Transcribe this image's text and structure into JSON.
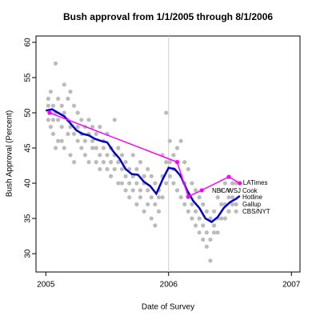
{
  "chart_data": {
    "type": "scatter",
    "title": "Bush approval from 1/1/2005 through 8/1/2006",
    "xlabel": "Date of Survey",
    "ylabel": "Bush Approval (Percent)",
    "xlim": [
      2004.92,
      2007.07
    ],
    "ylim": [
      27.4,
      60.9
    ],
    "xticks": [
      2005,
      2006,
      2007
    ],
    "yticks": [
      30,
      35,
      40,
      45,
      50,
      55,
      60
    ],
    "vline": 2006,
    "series": [
      {
        "type": "scatter",
        "color": "#bbbbbb",
        "x": [
          2005.02,
          2005.02,
          2005.02,
          2005.04,
          2005.04,
          2005.04,
          2005.06,
          2005.06,
          2005.06,
          2005.08,
          2005.08,
          2005.08,
          2005.1,
          2005.1,
          2005.1,
          2005.13,
          2005.13,
          2005.13,
          2005.15,
          2005.15,
          2005.15,
          2005.18,
          2005.18,
          2005.18,
          2005.2,
          2005.2,
          2005.2,
          2005.23,
          2005.23,
          2005.23,
          2005.26,
          2005.26,
          2005.26,
          2005.29,
          2005.29,
          2005.29,
          2005.32,
          2005.32,
          2005.32,
          2005.35,
          2005.35,
          2005.35,
          2005.38,
          2005.38,
          2005.38,
          2005.41,
          2005.41,
          2005.41,
          2005.44,
          2005.44,
          2005.44,
          2005.47,
          2005.47,
          2005.47,
          2005.5,
          2005.5,
          2005.5,
          2005.53,
          2005.53,
          2005.53,
          2005.56,
          2005.56,
          2005.56,
          2005.59,
          2005.59,
          2005.59,
          2005.62,
          2005.62,
          2005.62,
          2005.65,
          2005.65,
          2005.65,
          2005.68,
          2005.68,
          2005.68,
          2005.71,
          2005.71,
          2005.71,
          2005.74,
          2005.74,
          2005.74,
          2005.77,
          2005.77,
          2005.77,
          2005.8,
          2005.8,
          2005.8,
          2005.83,
          2005.83,
          2005.83,
          2005.86,
          2005.86,
          2005.86,
          2005.89,
          2005.89,
          2005.89,
          2005.92,
          2005.92,
          2005.92,
          2005.95,
          2005.95,
          2005.95,
          2005.98,
          2005.98,
          2005.98,
          2006.01,
          2006.01,
          2006.01,
          2006.04,
          2006.04,
          2006.04,
          2006.07,
          2006.07,
          2006.07,
          2006.1,
          2006.1,
          2006.1,
          2006.13,
          2006.13,
          2006.13,
          2006.16,
          2006.16,
          2006.16,
          2006.19,
          2006.19,
          2006.19,
          2006.22,
          2006.22,
          2006.22,
          2006.25,
          2006.25,
          2006.25,
          2006.28,
          2006.28,
          2006.28,
          2006.31,
          2006.31,
          2006.31,
          2006.34,
          2006.34,
          2006.34,
          2006.37,
          2006.37,
          2006.37,
          2006.4,
          2006.4,
          2006.4,
          2006.43,
          2006.43,
          2006.43,
          2006.46,
          2006.46,
          2006.46,
          2006.49,
          2006.49,
          2006.49,
          2006.52,
          2006.52,
          2006.52,
          2006.55,
          2006.55,
          2006.55
        ],
        "values": [
          52,
          51,
          49,
          53,
          50,
          48,
          51,
          49,
          47,
          57,
          50,
          45,
          52,
          49,
          46,
          51,
          48,
          46,
          54,
          50,
          45,
          52,
          49,
          47,
          53,
          48,
          44,
          51,
          47,
          43,
          50,
          48,
          46,
          49,
          47,
          45,
          48,
          46,
          44,
          49,
          47,
          43,
          48,
          46,
          45,
          47,
          45,
          43,
          48,
          44,
          42,
          46,
          45,
          43,
          47,
          44,
          42,
          45,
          43,
          41,
          49,
          44,
          42,
          45,
          43,
          40,
          44,
          42,
          40,
          43,
          41,
          39,
          42,
          40,
          38,
          44,
          41,
          39,
          42,
          40,
          37,
          43,
          39,
          38,
          41,
          40,
          36,
          42,
          39,
          37,
          41,
          38,
          35,
          40,
          37,
          34,
          39,
          38,
          36,
          44,
          41,
          38,
          50,
          43,
          40,
          46,
          43,
          41,
          44,
          42,
          40,
          45,
          43,
          39,
          46,
          41,
          38,
          43,
          40,
          37,
          42,
          38,
          36,
          40,
          37,
          35,
          39,
          36,
          34,
          38,
          35,
          33,
          37,
          34,
          32,
          36,
          33,
          31,
          35,
          32,
          29,
          36,
          34,
          33,
          38,
          35,
          33,
          39,
          37,
          35,
          40,
          37,
          35,
          39,
          38,
          36,
          40,
          38,
          37,
          40,
          37,
          36
        ]
      },
      {
        "type": "line",
        "color": "#0000cc",
        "x": [
          2005.0,
          2005.05,
          2005.1,
          2005.15,
          2005.2,
          2005.25,
          2005.3,
          2005.35,
          2005.4,
          2005.45,
          2005.5,
          2005.55,
          2005.6,
          2005.65,
          2005.7,
          2005.75,
          2005.8,
          2005.85,
          2005.9,
          2005.95,
          2006.0,
          2006.05,
          2006.1,
          2006.15,
          2006.2,
          2006.25,
          2006.3,
          2006.35,
          2006.4,
          2006.45,
          2006.5,
          2006.55,
          2006.58
        ],
        "values": [
          50.3,
          50.5,
          50,
          49.5,
          48.5,
          47.5,
          47,
          46.8,
          46.3,
          46,
          45.8,
          44.5,
          43.5,
          42,
          41.3,
          41.2,
          40.2,
          39.6,
          38.5,
          40.5,
          42.2,
          42,
          41,
          39,
          37.5,
          36.5,
          35,
          34.5,
          35.2,
          36.5,
          37.3,
          37.8,
          38.2
        ]
      },
      {
        "type": "line",
        "name": "LATimes",
        "color": "#ff00ff",
        "points": true,
        "x": [
          2005.03,
          2006.07,
          2006.16,
          2006.27,
          2006.49,
          2006.58
        ],
        "values": [
          50,
          43,
          38.1,
          39,
          40.9,
          40
        ]
      }
    ],
    "annotations": [
      "NBC/WSJ",
      "Cook",
      "Hotline",
      "Gallup",
      "CBS/NYT"
    ],
    "annotation_color": "#aaaaaa"
  }
}
